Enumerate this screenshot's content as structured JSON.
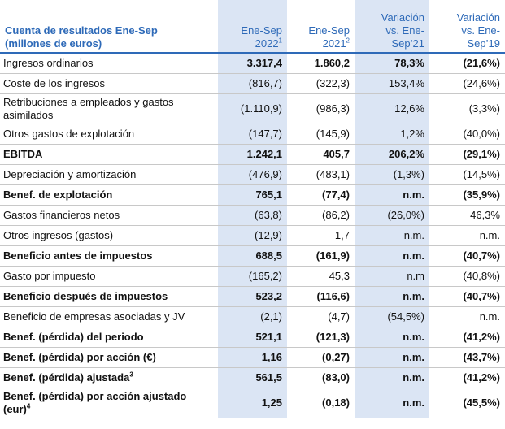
{
  "header": {
    "title": [
      "Cuenta de resultados Ene-Sep",
      "(millones de euros)"
    ],
    "columns": [
      {
        "lines": [
          "Ene-Sep",
          "2022"
        ],
        "sup": "1"
      },
      {
        "lines": [
          "Ene-Sep",
          "2021"
        ],
        "sup": "2"
      },
      {
        "lines": [
          "Variación",
          "vs. Ene-",
          "Sep’21"
        ]
      },
      {
        "lines": [
          "Variación",
          "vs. Ene-",
          "Sep’19"
        ]
      }
    ]
  },
  "rows": [
    {
      "label": "Ingresos ordinarios",
      "values": [
        "3.317,4",
        "1.860,2",
        "78,3%",
        "(21,6%)"
      ],
      "bold": true
    },
    {
      "label": "Coste de los ingresos",
      "values": [
        "(816,7)",
        "(322,3)",
        "153,4%",
        "(24,6%)"
      ],
      "bold": false
    },
    {
      "label": "Retribuciones a empleados y gastos asimilados",
      "values": [
        "(1.110,9)",
        "(986,3)",
        "12,6%",
        "(3,3%)"
      ],
      "bold": false
    },
    {
      "label": "Otros gastos de explotación",
      "values": [
        "(147,7)",
        "(145,9)",
        "1,2%",
        "(40,0%)"
      ],
      "bold": false
    },
    {
      "label": "EBITDA",
      "values": [
        "1.242,1",
        "405,7",
        "206,2%",
        "(29,1%)"
      ],
      "bold": true
    },
    {
      "label": "Depreciación y amortización",
      "values": [
        "(476,9)",
        "(483,1)",
        "(1,3%)",
        "(14,5%)"
      ],
      "bold": false
    },
    {
      "label": "Benef. de explotación",
      "values": [
        "765,1",
        "(77,4)",
        "n.m.",
        "(35,9%)"
      ],
      "bold": true
    },
    {
      "label": "Gastos financieros netos",
      "values": [
        "(63,8)",
        "(86,2)",
        "(26,0%)",
        "46,3%"
      ],
      "bold": false
    },
    {
      "label": "Otros ingresos (gastos)",
      "values": [
        "(12,9)",
        "1,7",
        "n.m.",
        "n.m."
      ],
      "bold": false
    },
    {
      "label": "Beneficio antes de impuestos",
      "values": [
        "688,5",
        "(161,9)",
        "n.m.",
        "(40,7%)"
      ],
      "bold": true
    },
    {
      "label": "Gasto por impuesto",
      "values": [
        "(165,2)",
        "45,3",
        "n.m",
        "(40,8%)"
      ],
      "bold": false
    },
    {
      "label": "Beneficio después de impuestos",
      "values": [
        "523,2",
        "(116,6)",
        "n.m.",
        "(40,7%)"
      ],
      "bold": true
    },
    {
      "label": "Beneficio de empresas asociadas y JV",
      "values": [
        "(2,1)",
        "(4,7)",
        "(54,5%)",
        "n.m."
      ],
      "bold": false
    },
    {
      "label": "Benef. (pérdida) del periodo",
      "values": [
        "521,1",
        "(121,3)",
        "n.m.",
        "(41,2%)"
      ],
      "bold": true
    },
    {
      "label": "Benef. (pérdida) por acción (€)",
      "values": [
        "1,16",
        "(0,27)",
        "n.m.",
        "(43,7%)"
      ],
      "bold": true
    },
    {
      "label": "Benef. (pérdida) ajustada",
      "sup": "3",
      "values": [
        "561,5",
        "(83,0)",
        "n.m.",
        "(41,2%)"
      ],
      "bold": true
    },
    {
      "label": "Benef. (pérdida) por acción ajustado (eur)",
      "sup": "4",
      "values": [
        "1,25",
        "(0,18)",
        "n.m.",
        "(45,5%)"
      ],
      "bold": true
    }
  ]
}
